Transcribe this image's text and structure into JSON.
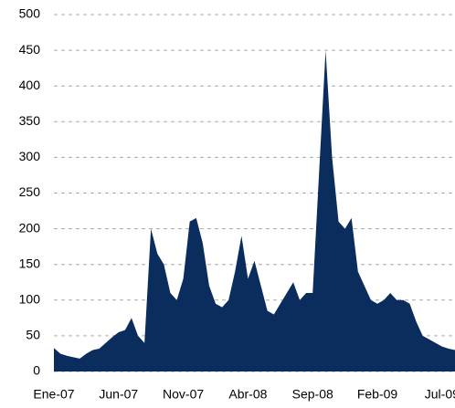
{
  "chart_data": {
    "type": "area",
    "categories": [
      "Ene-07",
      null,
      null,
      null,
      null,
      null,
      null,
      null,
      null,
      null,
      "Jun-07",
      null,
      null,
      null,
      null,
      null,
      null,
      null,
      null,
      null,
      "Nov-07",
      null,
      null,
      null,
      null,
      null,
      null,
      null,
      null,
      null,
      "Abr-08",
      null,
      null,
      null,
      null,
      null,
      null,
      null,
      null,
      null,
      "Sep-08",
      null,
      null,
      null,
      null,
      null,
      null,
      null,
      null,
      null,
      "Feb-09",
      null,
      null,
      null,
      null,
      null,
      null,
      null,
      null,
      null,
      "Jul-09",
      null,
      null
    ],
    "values": [
      33,
      25,
      22,
      20,
      18,
      25,
      30,
      32,
      40,
      48,
      55,
      58,
      75,
      50,
      40,
      200,
      165,
      150,
      110,
      100,
      130,
      210,
      215,
      180,
      120,
      95,
      90,
      100,
      140,
      190,
      130,
      155,
      120,
      85,
      80,
      95,
      110,
      125,
      100,
      110,
      110,
      280,
      450,
      300,
      210,
      200,
      215,
      140,
      120,
      100,
      95,
      100,
      110,
      100,
      100,
      95,
      70,
      50,
      45,
      40,
      35,
      32,
      30
    ],
    "color": "#0b2d5e",
    "ylim": [
      0,
      500
    ],
    "yticks": [
      0,
      50,
      100,
      150,
      200,
      250,
      300,
      350,
      400,
      450,
      500
    ],
    "grid": true
  }
}
